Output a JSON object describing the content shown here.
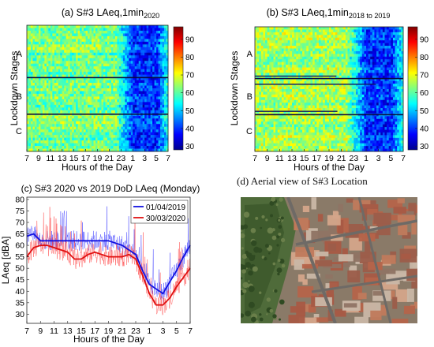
{
  "chart_data": [
    {
      "panel": "(a)",
      "type": "heatmap",
      "title_main": "(a) S#3 LAeq,1min",
      "title_sub": "2020",
      "xlabel": "Hours of the Day",
      "ylabel": "Lockdown Stages",
      "x_ticks": [
        "7",
        "9",
        "11",
        "13",
        "15",
        "17",
        "19",
        "21",
        "23",
        "1",
        "3",
        "5",
        "7"
      ],
      "y_labels": [
        "A",
        "B",
        "C"
      ],
      "colorbar": {
        "ticks": [
          30,
          40,
          50,
          60,
          70,
          80,
          90
        ],
        "range": [
          28,
          97
        ],
        "colormap": "jet"
      }
    },
    {
      "panel": "(b)",
      "type": "heatmap",
      "title_main": "(b) S#3 LAeq,1min",
      "title_sub": "2018 to 2019",
      "xlabel": "Hours of the Day",
      "ylabel": "Lockdown Stages",
      "x_ticks": [
        "7",
        "9",
        "11",
        "13",
        "15",
        "17",
        "19",
        "21",
        "23",
        "1",
        "3",
        "5",
        "7"
      ],
      "y_labels": [
        "A",
        "B",
        "C"
      ],
      "colorbar": {
        "ticks": [
          30,
          40,
          50,
          60,
          70,
          80,
          90
        ],
        "range": [
          28,
          97
        ],
        "colormap": "jet"
      }
    },
    {
      "panel": "(c)",
      "type": "line",
      "title": "(c) S#3 2020 vs 2019 DoD LAeq (Monday)",
      "xlabel": "Hours of the Day",
      "ylabel": "LAeq [dBA]",
      "x_ticks": [
        "7",
        "9",
        "11",
        "13",
        "15",
        "17",
        "19",
        "21",
        "23",
        "1",
        "3",
        "5",
        "7"
      ],
      "y_ticks": [
        30,
        35,
        40,
        45,
        50,
        55,
        60,
        65,
        70,
        75,
        80
      ],
      "ylim": [
        26,
        81
      ],
      "legend_position": "top-right",
      "series": [
        {
          "name": "01/04/2019",
          "color": "#1010e0",
          "x": [
            7,
            8,
            9,
            10,
            11,
            12,
            13,
            14,
            15,
            16,
            17,
            18,
            19,
            20,
            21,
            22,
            23,
            24,
            25,
            26,
            27,
            28,
            29,
            30,
            31
          ],
          "values": [
            64,
            65,
            62,
            62,
            62,
            62,
            62,
            62,
            62,
            62,
            62,
            62,
            62,
            61,
            60,
            58,
            56,
            49,
            43,
            41,
            39,
            44,
            49,
            55,
            60
          ]
        },
        {
          "name": "30/03/2020",
          "color": "#e01010",
          "x": [
            7,
            8,
            9,
            10,
            11,
            12,
            13,
            14,
            15,
            16,
            17,
            18,
            19,
            20,
            21,
            22,
            23,
            24,
            25,
            26,
            27,
            28,
            29,
            30,
            31
          ],
          "values": [
            55,
            59,
            60,
            60,
            59,
            58,
            57,
            54,
            54,
            56,
            57,
            56,
            55,
            55,
            55,
            56,
            54,
            47,
            39,
            34,
            34,
            37,
            42,
            46,
            50
          ]
        }
      ]
    }
  ],
  "panel_d": {
    "title": "(d) Aerial view of S#3 Location"
  }
}
